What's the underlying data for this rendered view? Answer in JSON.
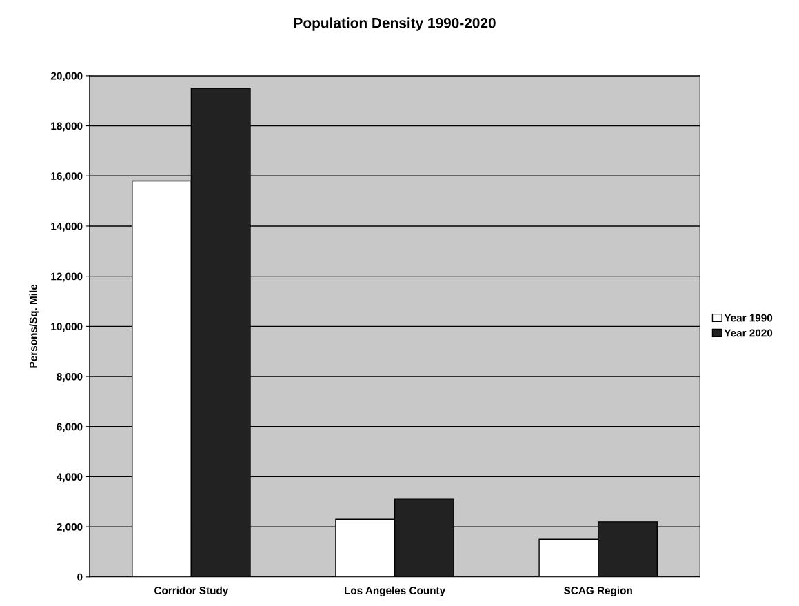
{
  "chart_data": {
    "type": "bar",
    "title": "Population Density 1990-2020",
    "ylabel": "Persons/Sq. Mile",
    "categories": [
      "Corridor Study",
      "Los Angeles County",
      "SCAG Region"
    ],
    "series": [
      {
        "name": "Year 1990",
        "color": "#ffffff",
        "values": [
          15800,
          2300,
          1500
        ]
      },
      {
        "name": "Year 2020",
        "color": "#222222",
        "values": [
          19500,
          3100,
          2200
        ]
      }
    ],
    "ylim": [
      0,
      20000
    ],
    "yticks": [
      {
        "value": 0,
        "label": "0"
      },
      {
        "value": 2000,
        "label": "2,000"
      },
      {
        "value": 4000,
        "label": "4,000"
      },
      {
        "value": 6000,
        "label": "6,000"
      },
      {
        "value": 8000,
        "label": "8,000"
      },
      {
        "value": 10000,
        "label": "10,000"
      },
      {
        "value": 12000,
        "label": "12,000"
      },
      {
        "value": 14000,
        "label": "14,000"
      },
      {
        "value": 16000,
        "label": "16,000"
      },
      {
        "value": 18000,
        "label": "18,000"
      },
      {
        "value": 20000,
        "label": "20,000"
      }
    ],
    "grid": "y",
    "legend": "right"
  }
}
